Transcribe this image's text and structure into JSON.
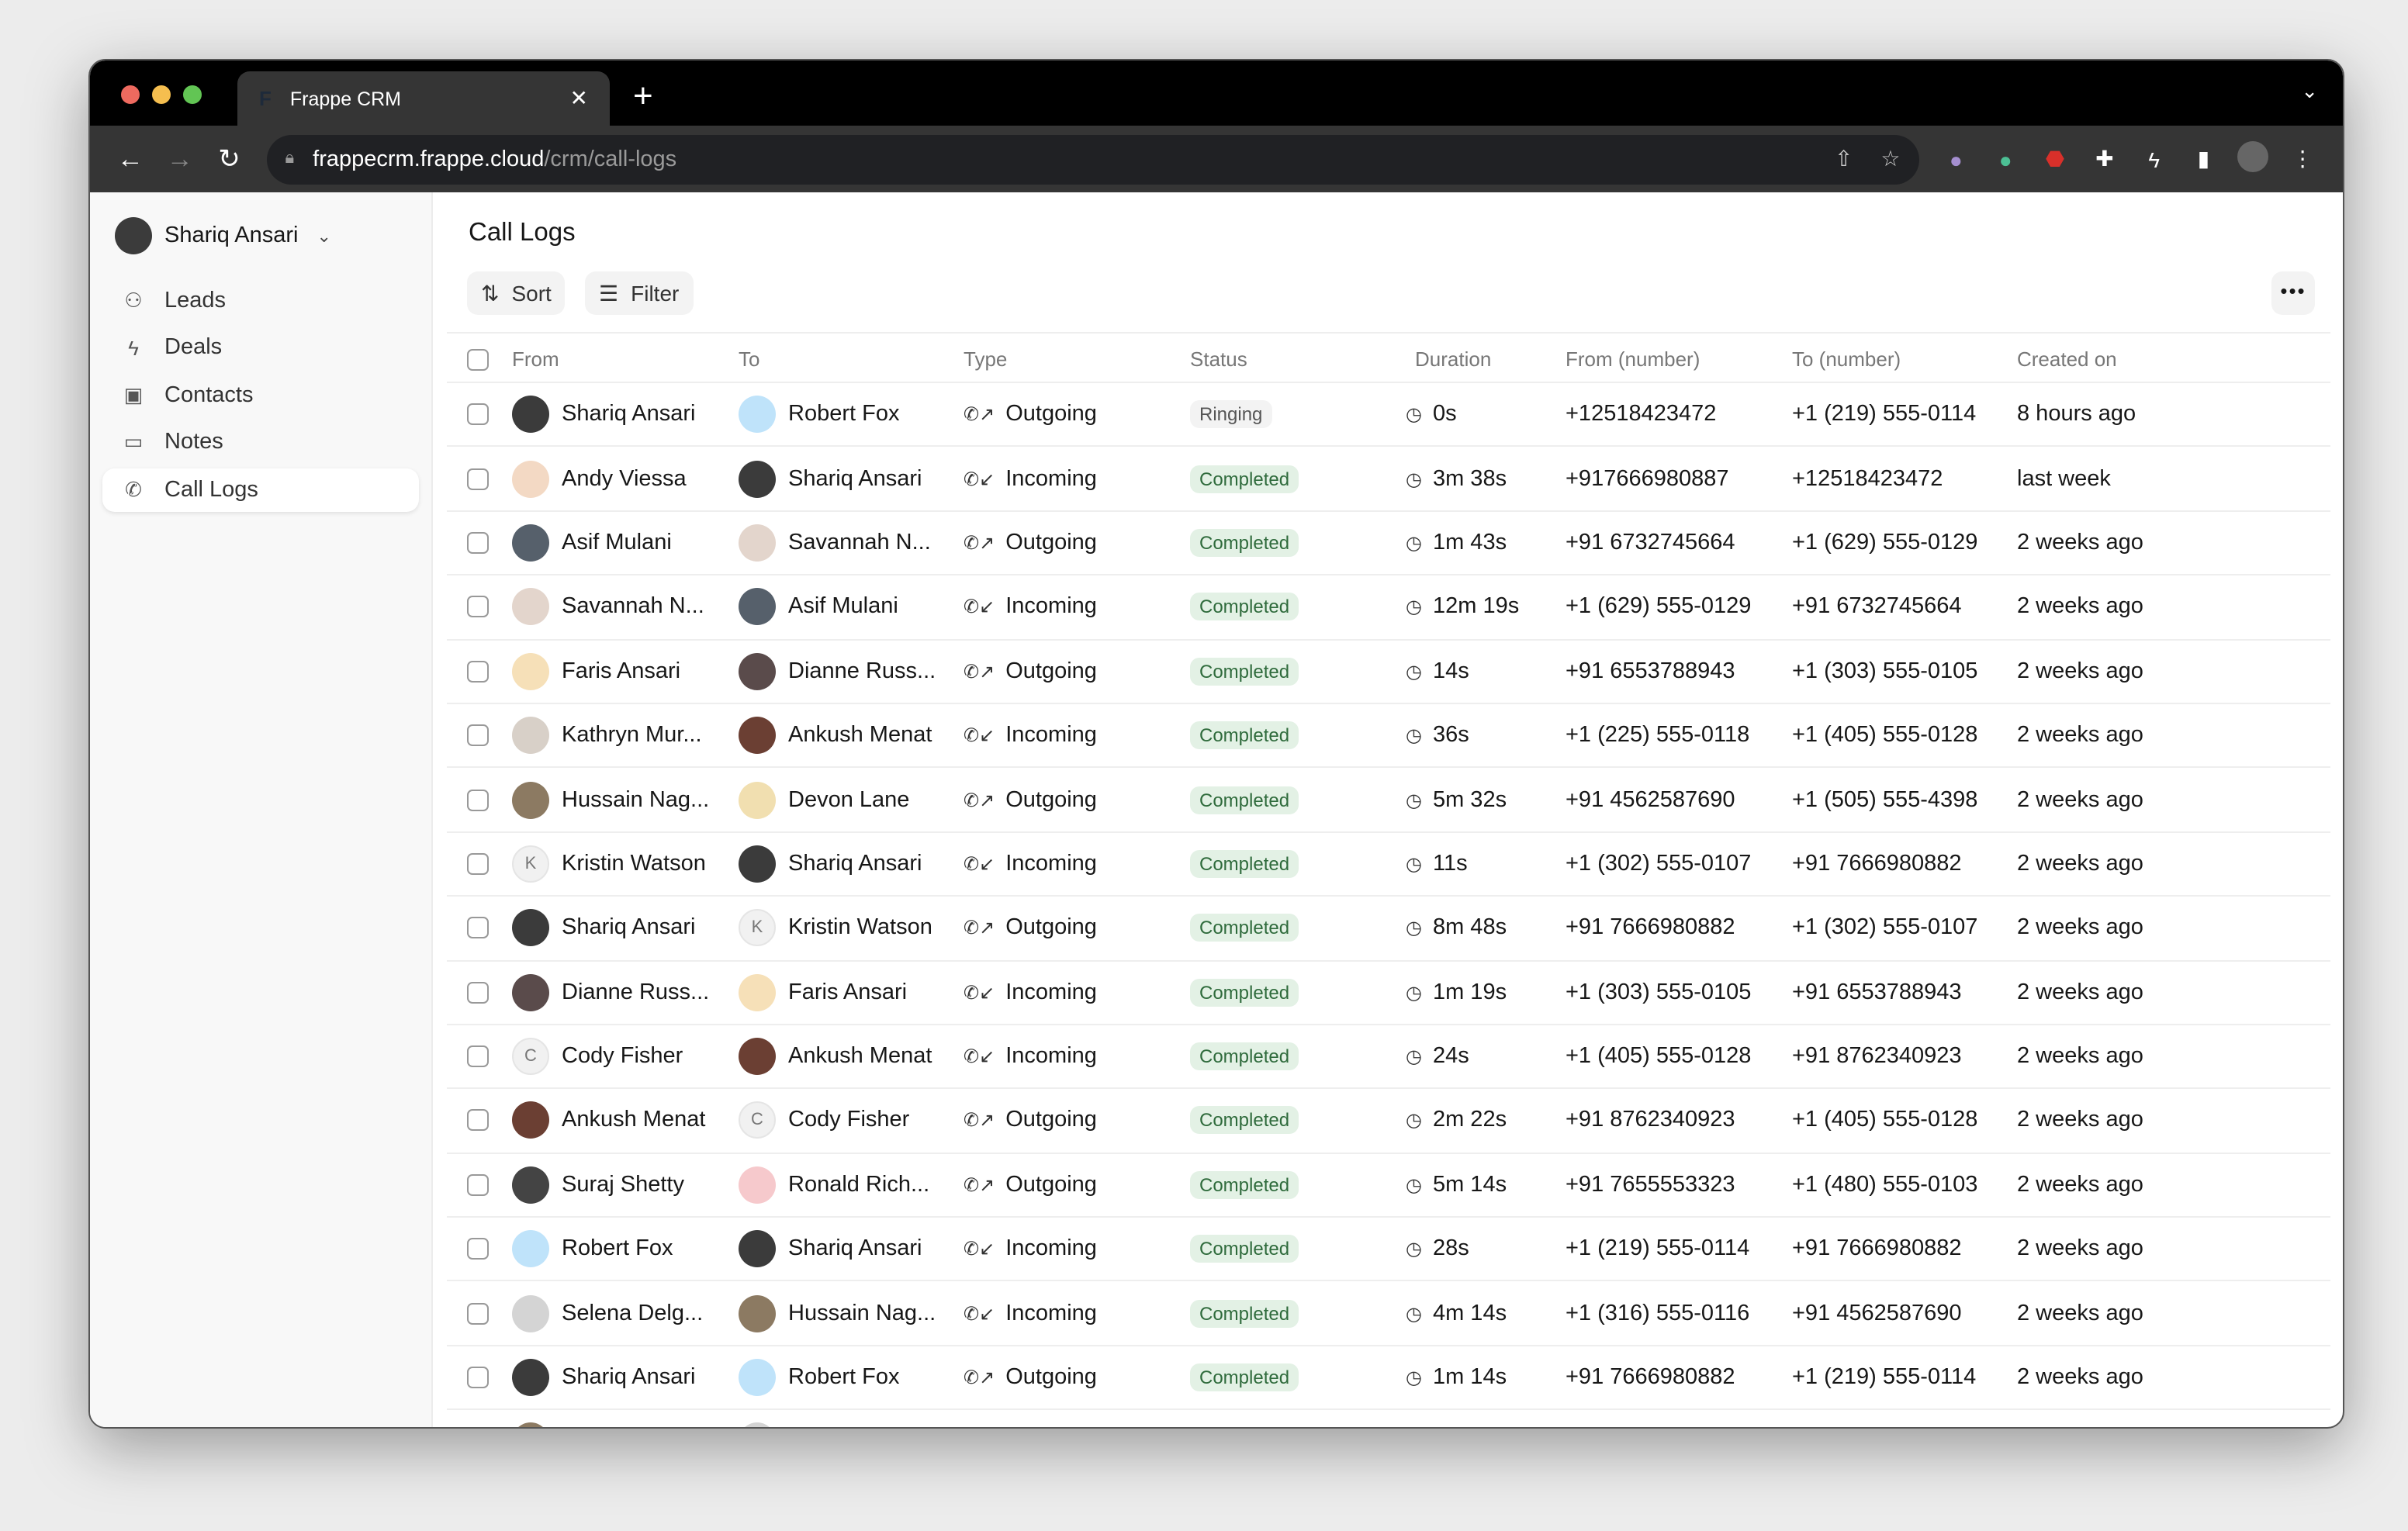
{
  "browser": {
    "tab_title": "Frappe CRM",
    "url_host": "frappecrm.frappe.cloud",
    "url_path": "/crm/call-logs",
    "traffic": [
      "#ee6a5f",
      "#f5be4f",
      "#62c554"
    ]
  },
  "sidebar": {
    "user": "Shariq Ansari",
    "items": [
      {
        "label": "Leads",
        "icon": "users-icon"
      },
      {
        "label": "Deals",
        "icon": "zap-icon"
      },
      {
        "label": "Contacts",
        "icon": "contact-icon"
      },
      {
        "label": "Notes",
        "icon": "file-icon"
      },
      {
        "label": "Call Logs",
        "icon": "phone-icon",
        "active": true
      }
    ]
  },
  "page": {
    "title": "Call Logs",
    "sort_label": "Sort",
    "filter_label": "Filter"
  },
  "table": {
    "columns": [
      "From",
      "To",
      "Type",
      "Status",
      "Duration",
      "From (number)",
      "To (number)",
      "Created on"
    ],
    "rows": [
      [
        "Shariq Ansari",
        "Robert Fox",
        "Outgoing",
        "Ringing",
        "0s",
        "+12518423472",
        "+1 (219) 555-0114",
        "8 hours ago"
      ],
      [
        "Andy Viessa",
        "Shariq Ansari",
        "Incoming",
        "Completed",
        "3m 38s",
        "+917666980887",
        "+12518423472",
        "last week"
      ],
      [
        "Asif Mulani",
        "Savannah N...",
        "Outgoing",
        "Completed",
        "1m 43s",
        "+91 6732745664",
        "+1 (629) 555-0129",
        "2 weeks ago"
      ],
      [
        "Savannah N...",
        "Asif Mulani",
        "Incoming",
        "Completed",
        "12m 19s",
        "+1 (629) 555-0129",
        "+91 6732745664",
        "2 weeks ago"
      ],
      [
        "Faris Ansari",
        "Dianne Russ...",
        "Outgoing",
        "Completed",
        "14s",
        "+91 6553788943",
        "+1 (303) 555-0105",
        "2 weeks ago"
      ],
      [
        "Kathryn Mur...",
        "Ankush Menat",
        "Incoming",
        "Completed",
        "36s",
        "+1 (225) 555-0118",
        "+1 (405) 555-0128",
        "2 weeks ago"
      ],
      [
        "Hussain Nag...",
        "Devon Lane",
        "Outgoing",
        "Completed",
        "5m 32s",
        "+91 4562587690",
        "+1 (505) 555-4398",
        "2 weeks ago"
      ],
      [
        "Kristin Watson",
        "Shariq Ansari",
        "Incoming",
        "Completed",
        "11s",
        "+1 (302) 555-0107",
        "+91 7666980882",
        "2 weeks ago"
      ],
      [
        "Shariq Ansari",
        "Kristin Watson",
        "Outgoing",
        "Completed",
        "8m 48s",
        "+91 7666980882",
        "+1 (302) 555-0107",
        "2 weeks ago"
      ],
      [
        "Dianne Russ...",
        "Faris Ansari",
        "Incoming",
        "Completed",
        "1m 19s",
        "+1 (303) 555-0105",
        "+91 6553788943",
        "2 weeks ago"
      ],
      [
        "Cody Fisher",
        "Ankush Menat",
        "Incoming",
        "Completed",
        "24s",
        "+1 (405) 555-0128",
        "+91 8762340923",
        "2 weeks ago"
      ],
      [
        "Ankush Menat",
        "Cody Fisher",
        "Outgoing",
        "Completed",
        "2m 22s",
        "+91 8762340923",
        "+1 (405) 555-0128",
        "2 weeks ago"
      ],
      [
        "Suraj Shetty",
        "Ronald Rich...",
        "Outgoing",
        "Completed",
        "5m 14s",
        "+91 7655553323",
        "+1 (480) 555-0103",
        "2 weeks ago"
      ],
      [
        "Robert Fox",
        "Shariq Ansari",
        "Incoming",
        "Completed",
        "28s",
        "+1 (219) 555-0114",
        "+91 7666980882",
        "2 weeks ago"
      ],
      [
        "Selena Delg...",
        "Hussain Nag...",
        "Incoming",
        "Completed",
        "4m 14s",
        "+1 (316) 555-0116",
        "+91 4562587690",
        "2 weeks ago"
      ],
      [
        "Shariq Ansari",
        "Robert Fox",
        "Outgoing",
        "Completed",
        "1m 14s",
        "+91 7666980882",
        "+1 (219) 555-0114",
        "2 weeks ago"
      ]
    ]
  },
  "avatar_colors": {
    "Shariq Ansari": "#3b3b3b",
    "Robert Fox": "#bfe3fa",
    "Andy Viessa": "#f3d9c4",
    "Asif Mulani": "#56606b",
    "Savannah N...": "#e3d5cc",
    "Faris Ansari": "#f6e0b8",
    "Dianne Russ...": "#5a4b4b",
    "Kathryn Mur...": "#d8d0c8",
    "Ankush Menat": "#6b3f33",
    "Hussain Nag...": "#8c7a62",
    "Devon Lane": "#f1dfb0",
    "Kristin Watson": "#f1f1f1",
    "Cody Fisher": "#f1f1f1",
    "Suraj Shetty": "#444",
    "Ronald Rich...": "#f6c9cc",
    "Selena Delg...": "#d4d4d4"
  }
}
